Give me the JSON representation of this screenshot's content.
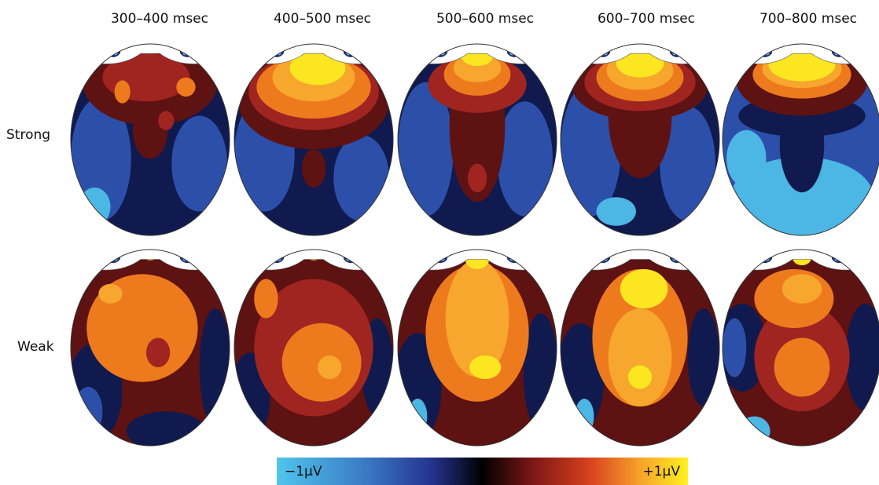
{
  "columns": [
    "300–400 msec",
    "400–500 msec",
    "500–600 msec",
    "600–700 msec",
    "700–800 msec"
  ],
  "rows": [
    "Strong",
    "Weak"
  ],
  "colorbar": {
    "min_label": "−1μV",
    "max_label": "+1μV"
  }
}
